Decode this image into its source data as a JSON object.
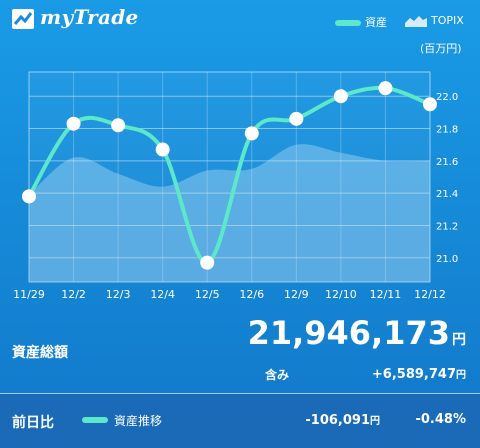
{
  "app": {
    "name": "myTrade"
  },
  "legend": {
    "asset": "資産",
    "topix": "TOPIX",
    "unit": "(百万円)"
  },
  "colors": {
    "asset_line": "#5ce8c9",
    "topix_area": "#9fd3f3",
    "background": "#168bd8"
  },
  "chart_data": {
    "type": "line",
    "categories": [
      "11/29",
      "12/2",
      "12/3",
      "12/4",
      "12/5",
      "12/6",
      "12/9",
      "12/10",
      "12/11",
      "12/12"
    ],
    "ylim": [
      20.85,
      22.15
    ],
    "y_ticks": [
      "21.0",
      "21.2",
      "21.4",
      "21.6",
      "21.8",
      "22.0"
    ],
    "series": [
      {
        "name": "資産",
        "values": [
          21.38,
          21.83,
          21.82,
          21.67,
          20.97,
          21.77,
          21.86,
          22.0,
          22.05,
          21.95
        ]
      },
      {
        "name": "TOPIX",
        "values": [
          21.39,
          21.62,
          21.52,
          21.44,
          21.54,
          21.55,
          21.7,
          21.65,
          21.6,
          21.6
        ]
      }
    ]
  },
  "summary": {
    "label": "資産総額",
    "total": "21,946,173",
    "total_unit": "円",
    "gain_label": "含み",
    "gain": "+6,589,747",
    "gain_unit": "円"
  },
  "footer": {
    "label": "前日比",
    "legend": "資産推移",
    "amount": "-106,091",
    "amount_unit": "円",
    "percent": "-0.48",
    "percent_unit": "%"
  }
}
